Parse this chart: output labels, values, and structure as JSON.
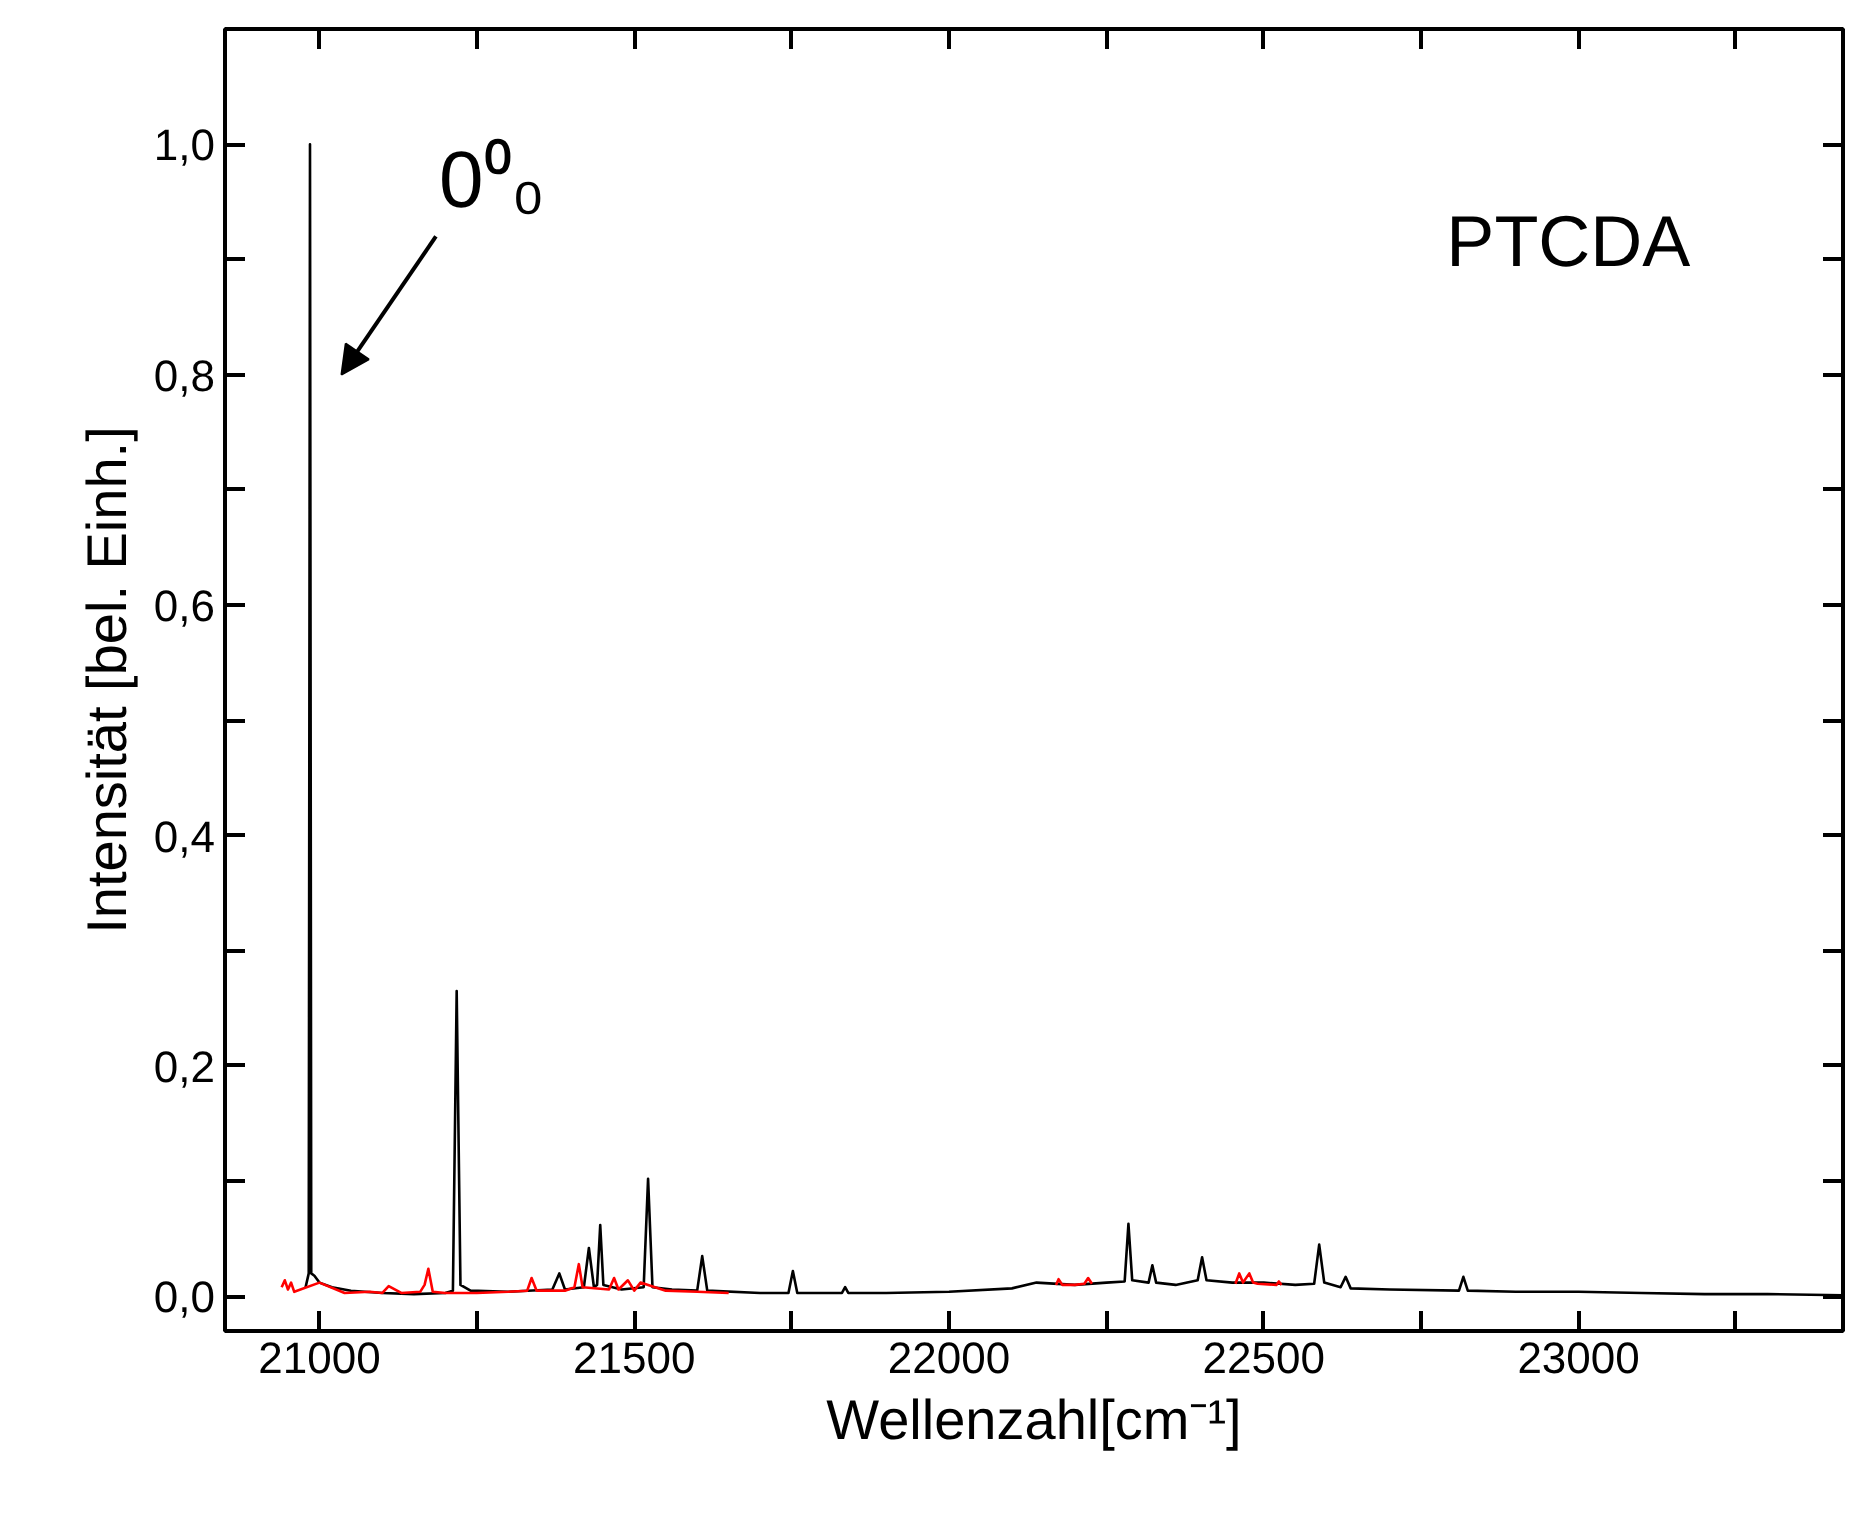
{
  "chart_data": {
    "type": "line",
    "xlabel": "Wellenzahl[cm⁻¹]",
    "ylabel": "Intensität [bel. Einh.]",
    "annotations": [
      "0⁰₀",
      "PTCDA"
    ],
    "xlim": [
      20850,
      23420
    ],
    "ylim": [
      -0.03,
      1.1
    ],
    "xticks": [
      21000,
      {
        "value": 21250,
        "label": null
      },
      21500,
      {
        "value": 21750,
        "label": null
      },
      22000,
      {
        "value": 22250,
        "label": null
      },
      22500,
      {
        "value": 22750,
        "label": null
      },
      23000,
      {
        "value": 23250,
        "label": null
      }
    ],
    "yticks": [
      {
        "value": 0,
        "label": "0,0"
      },
      {
        "value": 0.1,
        "label": null
      },
      {
        "value": 0.2,
        "label": "0,2"
      },
      {
        "value": 0.3,
        "label": null
      },
      {
        "value": 0.4,
        "label": "0,4"
      },
      {
        "value": 0.5,
        "label": null
      },
      {
        "value": 0.6,
        "label": "0,6"
      },
      {
        "value": 0.7,
        "label": null
      },
      {
        "value": 0.8,
        "label": "0,8"
      },
      {
        "value": 0.9,
        "label": null
      },
      {
        "value": 1.0,
        "label": "1,0"
      }
    ],
    "grid": false,
    "marker": "none",
    "line_style": "solid",
    "series": [
      {
        "color": "#000000",
        "x": [
          20978,
          20983,
          20985,
          20987,
          20992,
          21000,
          21020,
          21050,
          21100,
          21150,
          21200,
          21212,
          21218,
          21224,
          21240,
          21300,
          21370,
          21381,
          21390,
          21420,
          21428,
          21436,
          21441,
          21446,
          21451,
          21480,
          21515,
          21522,
          21529,
          21560,
          21600,
          21608,
          21616,
          21700,
          21745,
          21752,
          21759,
          21830,
          21835,
          21840,
          21900,
          22000,
          22100,
          22139,
          22200,
          22250,
          22279,
          22285,
          22291,
          22317,
          22323,
          22329,
          22360,
          22395,
          22402,
          22409,
          22450,
          22500,
          22550,
          22580,
          22588,
          22596,
          22622,
          22630,
          22638,
          22700,
          22810,
          22817,
          22824,
          22900,
          23000,
          23100,
          23200,
          23300,
          23420
        ],
        "values": [
          0.008,
          0.02,
          1.0,
          0.02,
          0.018,
          0.012,
          0.008,
          0.005,
          0.003,
          0.002,
          0.003,
          0.005,
          0.265,
          0.01,
          0.005,
          0.004,
          0.006,
          0.02,
          0.006,
          0.008,
          0.042,
          0.008,
          0.01,
          0.062,
          0.01,
          0.006,
          0.008,
          0.102,
          0.008,
          0.006,
          0.005,
          0.035,
          0.005,
          0.003,
          0.003,
          0.022,
          0.003,
          0.003,
          0.008,
          0.003,
          0.003,
          0.004,
          0.007,
          0.012,
          0.01,
          0.012,
          0.013,
          0.063,
          0.014,
          0.012,
          0.027,
          0.012,
          0.01,
          0.014,
          0.034,
          0.014,
          0.012,
          0.012,
          0.01,
          0.011,
          0.045,
          0.012,
          0.008,
          0.017,
          0.007,
          0.006,
          0.005,
          0.017,
          0.005,
          0.004,
          0.004,
          0.003,
          0.002,
          0.002,
          0.001
        ]
      },
      {
        "color": "#ff0000",
        "x": [
          20940,
          20945,
          20950,
          20955,
          20960,
          21000,
          21040,
          21080,
          21100,
          21110,
          21130,
          21160,
          21167,
          21173,
          21180,
          21200,
          21250,
          21300,
          21330,
          21337,
          21345,
          21370,
          21390,
          21405,
          21412,
          21418,
          21460,
          21468,
          21475,
          21490,
          21500,
          21510,
          21550,
          21600,
          21650,
          21900,
          22170,
          22174,
          22180,
          22200,
          22215,
          22221,
          22227,
          22350,
          22455,
          22461,
          22467,
          22477,
          22483,
          22490,
          22520,
          22524,
          22528
        ],
        "values": [
          0.008,
          0.014,
          0.006,
          0.012,
          0.004,
          0.012,
          0.003,
          0.004,
          0.003,
          0.009,
          0.003,
          0.004,
          0.01,
          0.024,
          0.004,
          0.003,
          0.003,
          0.004,
          0.005,
          0.016,
          0.005,
          0.005,
          0.005,
          0.008,
          0.028,
          0.008,
          0.006,
          0.016,
          0.006,
          0.014,
          0.005,
          0.012,
          0.005,
          0.004,
          0.003,
          null,
          0.01,
          0.015,
          0.01,
          0.01,
          0.011,
          0.016,
          0.011,
          null,
          0.011,
          0.02,
          0.012,
          0.02,
          0.012,
          0.011,
          0.01,
          0.013,
          0.01
        ]
      }
    ]
  }
}
